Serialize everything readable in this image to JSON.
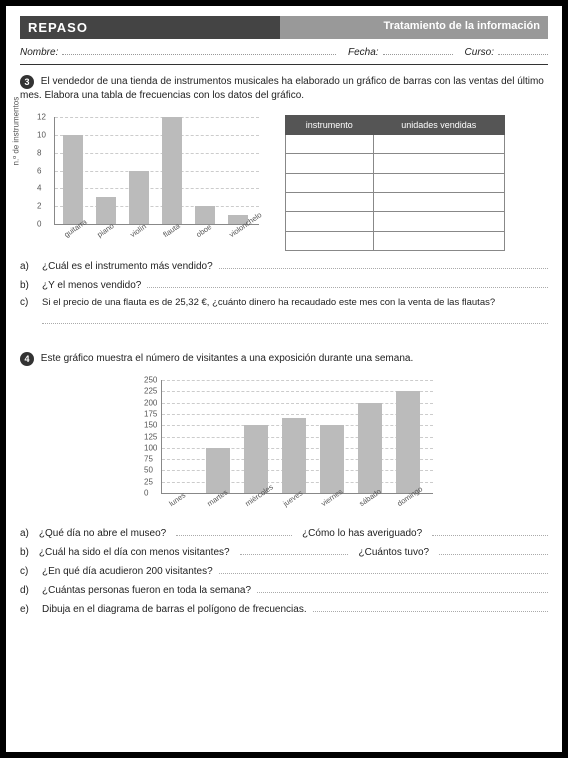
{
  "header": {
    "left": "REPASO",
    "right": "Tratamiento de la información"
  },
  "fields": {
    "nombre": "Nombre:",
    "fecha": "Fecha:",
    "curso": "Curso:"
  },
  "q3": {
    "num": "3",
    "text": "El vendedor de una tienda de instrumentos musicales ha elaborado un gráfico de barras con las ventas del último mes. Elabora una tabla de frecuencias con los datos del gráfico.",
    "chart": {
      "type": "bar",
      "ylabel": "n.º de instrumentos",
      "ylim": [
        0,
        12
      ],
      "ytick_step": 2,
      "categories": [
        "guitarra",
        "piano",
        "violín",
        "flauta",
        "oboe",
        "violonchelo"
      ],
      "values": [
        10,
        3,
        6,
        12,
        2,
        1
      ],
      "bar_color": "#bbbbbb",
      "grid_color": "#cccccc",
      "text_color": "#555555"
    },
    "table": {
      "headers": [
        "instrumento",
        "unidades vendidas"
      ],
      "rows": 6
    },
    "a": "¿Cuál es el instrumento más vendido?",
    "b": "¿Y el menos vendido?",
    "c": "Si el precio de una flauta es de 25,32 €, ¿cuánto dinero ha recaudado este mes con la venta de las flautas?"
  },
  "q4": {
    "num": "4",
    "text": "Este gráfico muestra el número de visitantes a una exposición durante una semana.",
    "chart": {
      "type": "bar",
      "ylim": [
        0,
        250
      ],
      "ytick_step": 25,
      "categories": [
        "lunes",
        "martes",
        "miércoles",
        "jueves",
        "viernes",
        "sábado",
        "domingo"
      ],
      "values": [
        0,
        100,
        150,
        165,
        150,
        200,
        225
      ],
      "bar_color": "#bbbbbb",
      "grid_color": "#cccccc",
      "text_color": "#555555"
    },
    "a1": "¿Qué día no abre el museo?",
    "a2": "¿Cómo lo has averiguado?",
    "b1": "¿Cuál ha sido el día con menos visitantes?",
    "b2": "¿Cuántos tuvo?",
    "c": "¿En qué día acudieron 200 visitantes?",
    "d": "¿Cuántas personas fueron en toda la semana?",
    "e": "Dibuja en el diagrama de barras el polígono de frecuencias."
  }
}
